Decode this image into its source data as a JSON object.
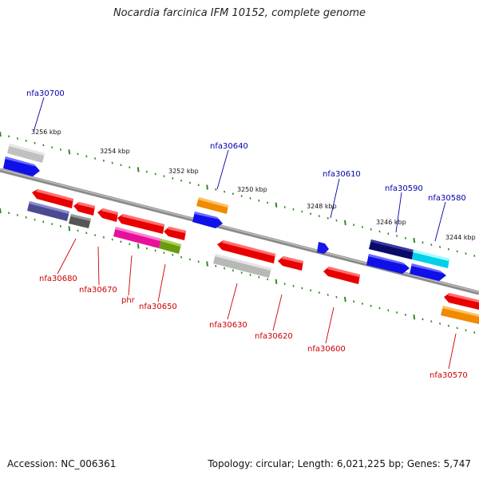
{
  "title": "Nocardia farcinica IFM 10152, complete genome",
  "footer": {
    "accession": "Accession: NC_006361",
    "summary": "Topology: circular; Length: 6,021,225 bp; Genes: 5,747"
  },
  "colors": {
    "background": "#ffffff",
    "backbone": "#8c8c8c",
    "tick": "#2e8b1e",
    "forward_label": "#0000aa",
    "reverse_label": "#cc0000"
  },
  "scale_labels": [
    "3256 kbp",
    "3254 kbp",
    "3252 kbp",
    "3250 kbp",
    "3248 kbp",
    "3246 kbp",
    "3244 kbp"
  ],
  "forward_gene_labels": [
    "nfa30700",
    "nfa30640",
    "nfa30610",
    "nfa30590",
    "nfa30580"
  ],
  "reverse_gene_labels": [
    "nfa30680",
    "nfa30670",
    "phr",
    "nfa30650",
    "nfa30630",
    "nfa30620",
    "nfa30600",
    "nfa30570"
  ]
}
